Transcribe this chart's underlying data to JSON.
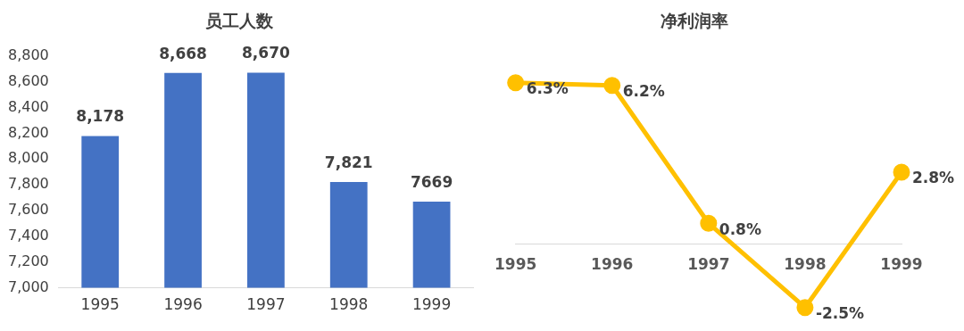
{
  "chart_data": [
    {
      "type": "bar",
      "title": "员工人数",
      "categories": [
        "1995",
        "1996",
        "1997",
        "1998",
        "1999"
      ],
      "values": [
        8178,
        8668,
        8670,
        7821,
        7669
      ],
      "color": "#4472c4",
      "value_labels": [
        "8,178",
        "8,668",
        "8,670",
        "7,821",
        "7669"
      ],
      "ylim": [
        7000,
        8800
      ],
      "yticks": [
        {
          "value": 7000,
          "label": "7,000"
        },
        {
          "value": 7200,
          "label": "7,200"
        },
        {
          "value": 7400,
          "label": "7,400"
        },
        {
          "value": 7600,
          "label": "7,600"
        },
        {
          "value": 7800,
          "label": "7,800"
        },
        {
          "value": 8000,
          "label": "8,000"
        },
        {
          "value": 8200,
          "label": "8,200"
        },
        {
          "value": 8400,
          "label": "8,400"
        },
        {
          "value": 8600,
          "label": "8,600"
        },
        {
          "value": 8800,
          "label": "8,800"
        }
      ]
    },
    {
      "type": "line",
      "title": "净利润率",
      "categories": [
        "1995",
        "1996",
        "1997",
        "1998",
        "1999"
      ],
      "values": [
        6.3,
        6.2,
        0.8,
        -2.5,
        2.8
      ],
      "color": "#ffc000",
      "marker": "circle",
      "value_labels": [
        "6.3%",
        "6.2%",
        "0.8%",
        "-2.5%",
        "2.8%"
      ],
      "tick_labels": "x"
    }
  ]
}
